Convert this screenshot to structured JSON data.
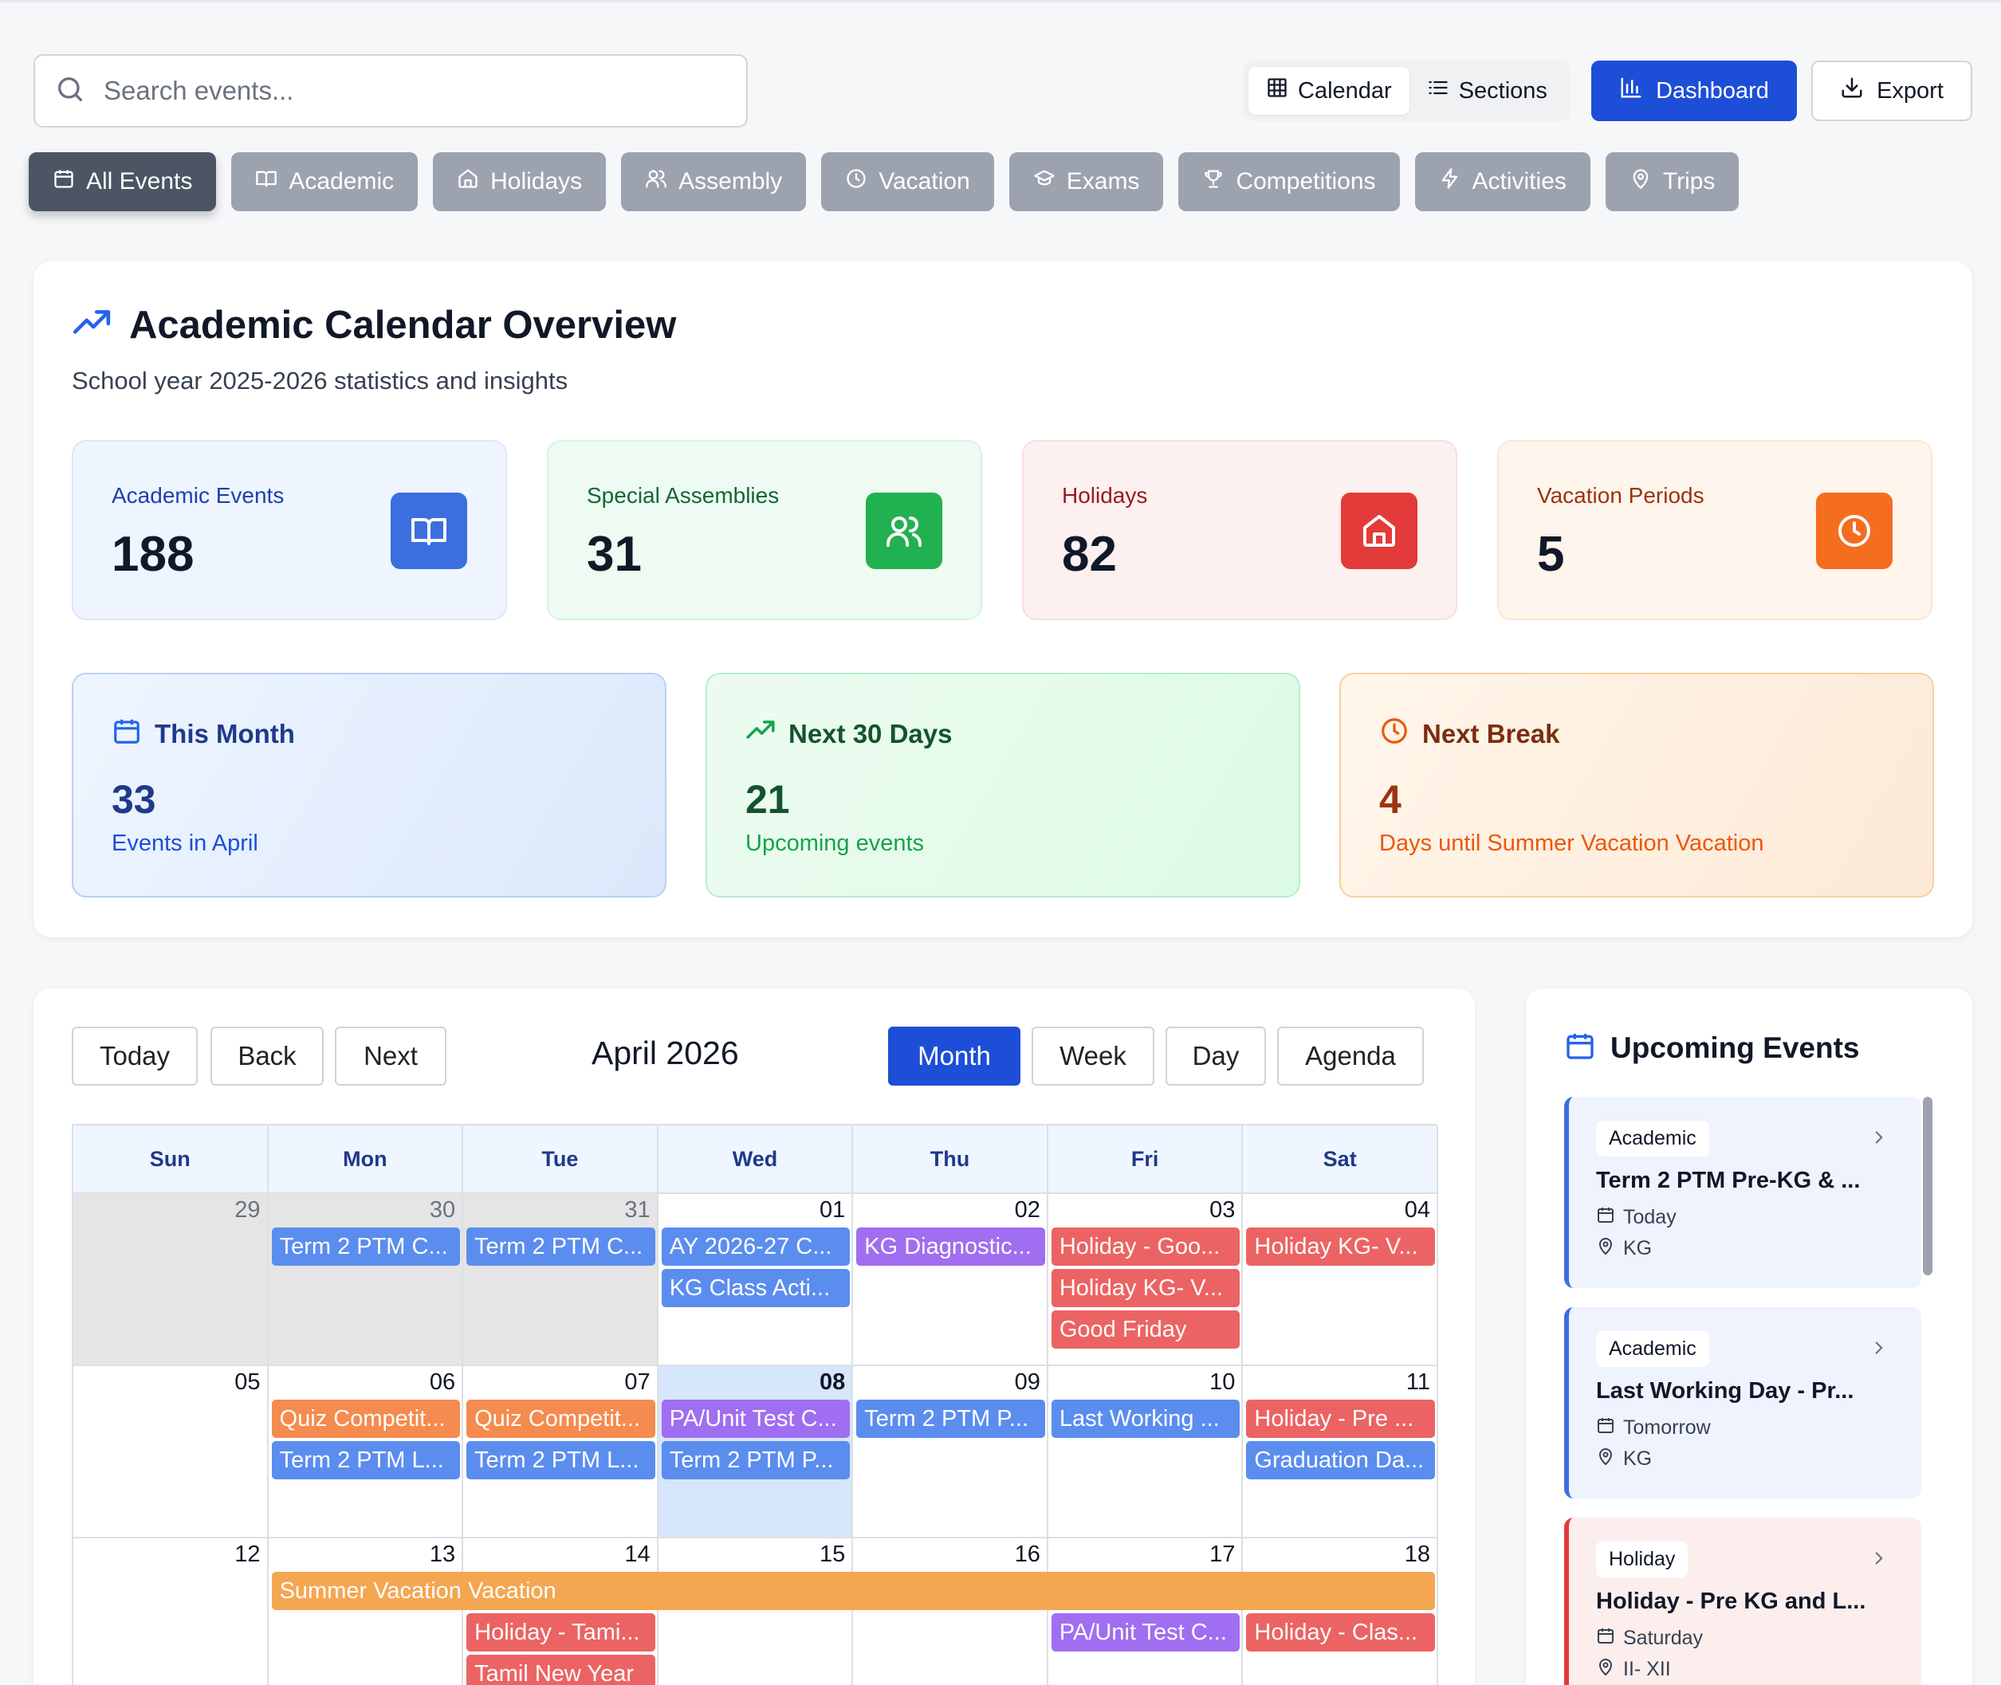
{
  "search": {
    "placeholder": "Search events..."
  },
  "toolbar": {
    "calendar_label": "Calendar",
    "sections_label": "Sections",
    "dashboard_label": "Dashboard",
    "export_label": "Export"
  },
  "filters": [
    {
      "label": "All Events",
      "icon": "calendar-icon"
    },
    {
      "label": "Academic",
      "icon": "book-icon"
    },
    {
      "label": "Holidays",
      "icon": "home-icon"
    },
    {
      "label": "Assembly",
      "icon": "users-icon"
    },
    {
      "label": "Vacation",
      "icon": "clock-icon"
    },
    {
      "label": "Exams",
      "icon": "graduation-cap-icon"
    },
    {
      "label": "Competitions",
      "icon": "trophy-icon"
    },
    {
      "label": "Activities",
      "icon": "lightning-icon"
    },
    {
      "label": "Trips",
      "icon": "map-pin-icon"
    }
  ],
  "overview": {
    "title": "Academic Calendar Overview",
    "subtitle": "School year 2025-2026 statistics and insights",
    "stats": [
      {
        "label": "Academic Events",
        "value": "188",
        "icon": "book-icon",
        "color": "#3b6fe0"
      },
      {
        "label": "Special Assemblies",
        "value": "31",
        "icon": "users-icon",
        "color": "#22b150"
      },
      {
        "label": "Holidays",
        "value": "82",
        "icon": "home-icon",
        "color": "#e33a3a"
      },
      {
        "label": "Vacation Periods",
        "value": "5",
        "icon": "clock-icon",
        "color": "#f56d1f"
      }
    ],
    "cards": [
      {
        "title": "This Month",
        "value": "33",
        "desc": "Events in April",
        "icon": "calendar-icon"
      },
      {
        "title": "Next 30 Days",
        "value": "21",
        "desc": "Upcoming events",
        "icon": "trending-up-icon"
      },
      {
        "title": "Next Break",
        "value": "4",
        "desc": "Days until Summer Vacation Vacation",
        "icon": "clock-icon"
      }
    ]
  },
  "calendar": {
    "title": "April 2026",
    "nav": {
      "today": "Today",
      "back": "Back",
      "next": "Next"
    },
    "views": {
      "month": "Month",
      "week": "Week",
      "day": "Day",
      "agenda": "Agenda"
    },
    "weekdays": [
      "Sun",
      "Mon",
      "Tue",
      "Wed",
      "Thu",
      "Fri",
      "Sat"
    ],
    "weeks": [
      [
        "29",
        "30",
        "31",
        "01",
        "02",
        "03",
        "04"
      ],
      [
        "05",
        "06",
        "07",
        "08",
        "09",
        "10",
        "11"
      ],
      [
        "12",
        "13",
        "14",
        "15",
        "16",
        "17",
        "18"
      ]
    ],
    "events": [
      {
        "title": "Term 2 PTM C...",
        "week": 0,
        "day": 1,
        "span": 1,
        "row": 0,
        "color": "blue"
      },
      {
        "title": "Term 2 PTM C...",
        "week": 0,
        "day": 2,
        "span": 1,
        "row": 0,
        "color": "blue"
      },
      {
        "title": "AY 2026-27 C...",
        "week": 0,
        "day": 3,
        "span": 1,
        "row": 0,
        "color": "blue"
      },
      {
        "title": "KG Class Acti...",
        "week": 0,
        "day": 3,
        "span": 1,
        "row": 1,
        "color": "blue"
      },
      {
        "title": "KG Diagnostic...",
        "week": 0,
        "day": 4,
        "span": 1,
        "row": 0,
        "color": "purple"
      },
      {
        "title": "Holiday - Goo...",
        "week": 0,
        "day": 5,
        "span": 1,
        "row": 0,
        "color": "red"
      },
      {
        "title": "Holiday KG- V...",
        "week": 0,
        "day": 5,
        "span": 1,
        "row": 1,
        "color": "red"
      },
      {
        "title": "Good Friday",
        "week": 0,
        "day": 5,
        "span": 1,
        "row": 2,
        "color": "red"
      },
      {
        "title": "Holiday KG- V...",
        "week": 0,
        "day": 6,
        "span": 1,
        "row": 0,
        "color": "red"
      },
      {
        "title": "Quiz Competit...",
        "week": 1,
        "day": 1,
        "span": 1,
        "row": 0,
        "color": "orange"
      },
      {
        "title": "Term 2 PTM L...",
        "week": 1,
        "day": 1,
        "span": 1,
        "row": 1,
        "color": "blue"
      },
      {
        "title": "Quiz Competit...",
        "week": 1,
        "day": 2,
        "span": 1,
        "row": 0,
        "color": "orange"
      },
      {
        "title": "Term 2 PTM L...",
        "week": 1,
        "day": 2,
        "span": 1,
        "row": 1,
        "color": "blue"
      },
      {
        "title": "PA/Unit Test C...",
        "week": 1,
        "day": 3,
        "span": 1,
        "row": 0,
        "color": "purple"
      },
      {
        "title": "Term 2 PTM P...",
        "week": 1,
        "day": 3,
        "span": 1,
        "row": 1,
        "color": "blue"
      },
      {
        "title": "Term 2 PTM P...",
        "week": 1,
        "day": 4,
        "span": 1,
        "row": 0,
        "color": "blue"
      },
      {
        "title": "Last Working ...",
        "week": 1,
        "day": 5,
        "span": 1,
        "row": 0,
        "color": "blue"
      },
      {
        "title": "Holiday - Pre ...",
        "week": 1,
        "day": 6,
        "span": 1,
        "row": 0,
        "color": "red"
      },
      {
        "title": "Graduation Da...",
        "week": 1,
        "day": 6,
        "span": 1,
        "row": 1,
        "color": "blue"
      },
      {
        "title": "Summer Vacation Vacation",
        "week": 2,
        "day": 1,
        "span": 6,
        "row": 0,
        "color": "amber"
      },
      {
        "title": "Holiday - Tami...",
        "week": 2,
        "day": 2,
        "span": 1,
        "row": 1,
        "color": "red"
      },
      {
        "title": "Tamil New Year",
        "week": 2,
        "day": 2,
        "span": 1,
        "row": 2,
        "color": "red"
      },
      {
        "title": "PA/Unit Test C...",
        "week": 2,
        "day": 5,
        "span": 1,
        "row": 1,
        "color": "purple"
      },
      {
        "title": "Holiday - Clas...",
        "week": 2,
        "day": 6,
        "span": 1,
        "row": 1,
        "color": "red"
      }
    ]
  },
  "upcoming": {
    "title": "Upcoming Events",
    "items": [
      {
        "tag": "Academic",
        "name": "Term 2 PTM Pre-KG & ...",
        "when": "Today",
        "where": "KG",
        "accent": "#3b6fe0",
        "bg": "#eef3fd"
      },
      {
        "tag": "Academic",
        "name": "Last Working Day - Pr...",
        "when": "Tomorrow",
        "where": "KG",
        "accent": "#3b6fe0",
        "bg": "#eef3fd"
      },
      {
        "tag": "Holiday",
        "name": "Holiday - Pre KG and L...",
        "when": "Saturday",
        "where": "II- XII",
        "accent": "#e33a3a",
        "bg": "#fdeeee"
      }
    ]
  }
}
